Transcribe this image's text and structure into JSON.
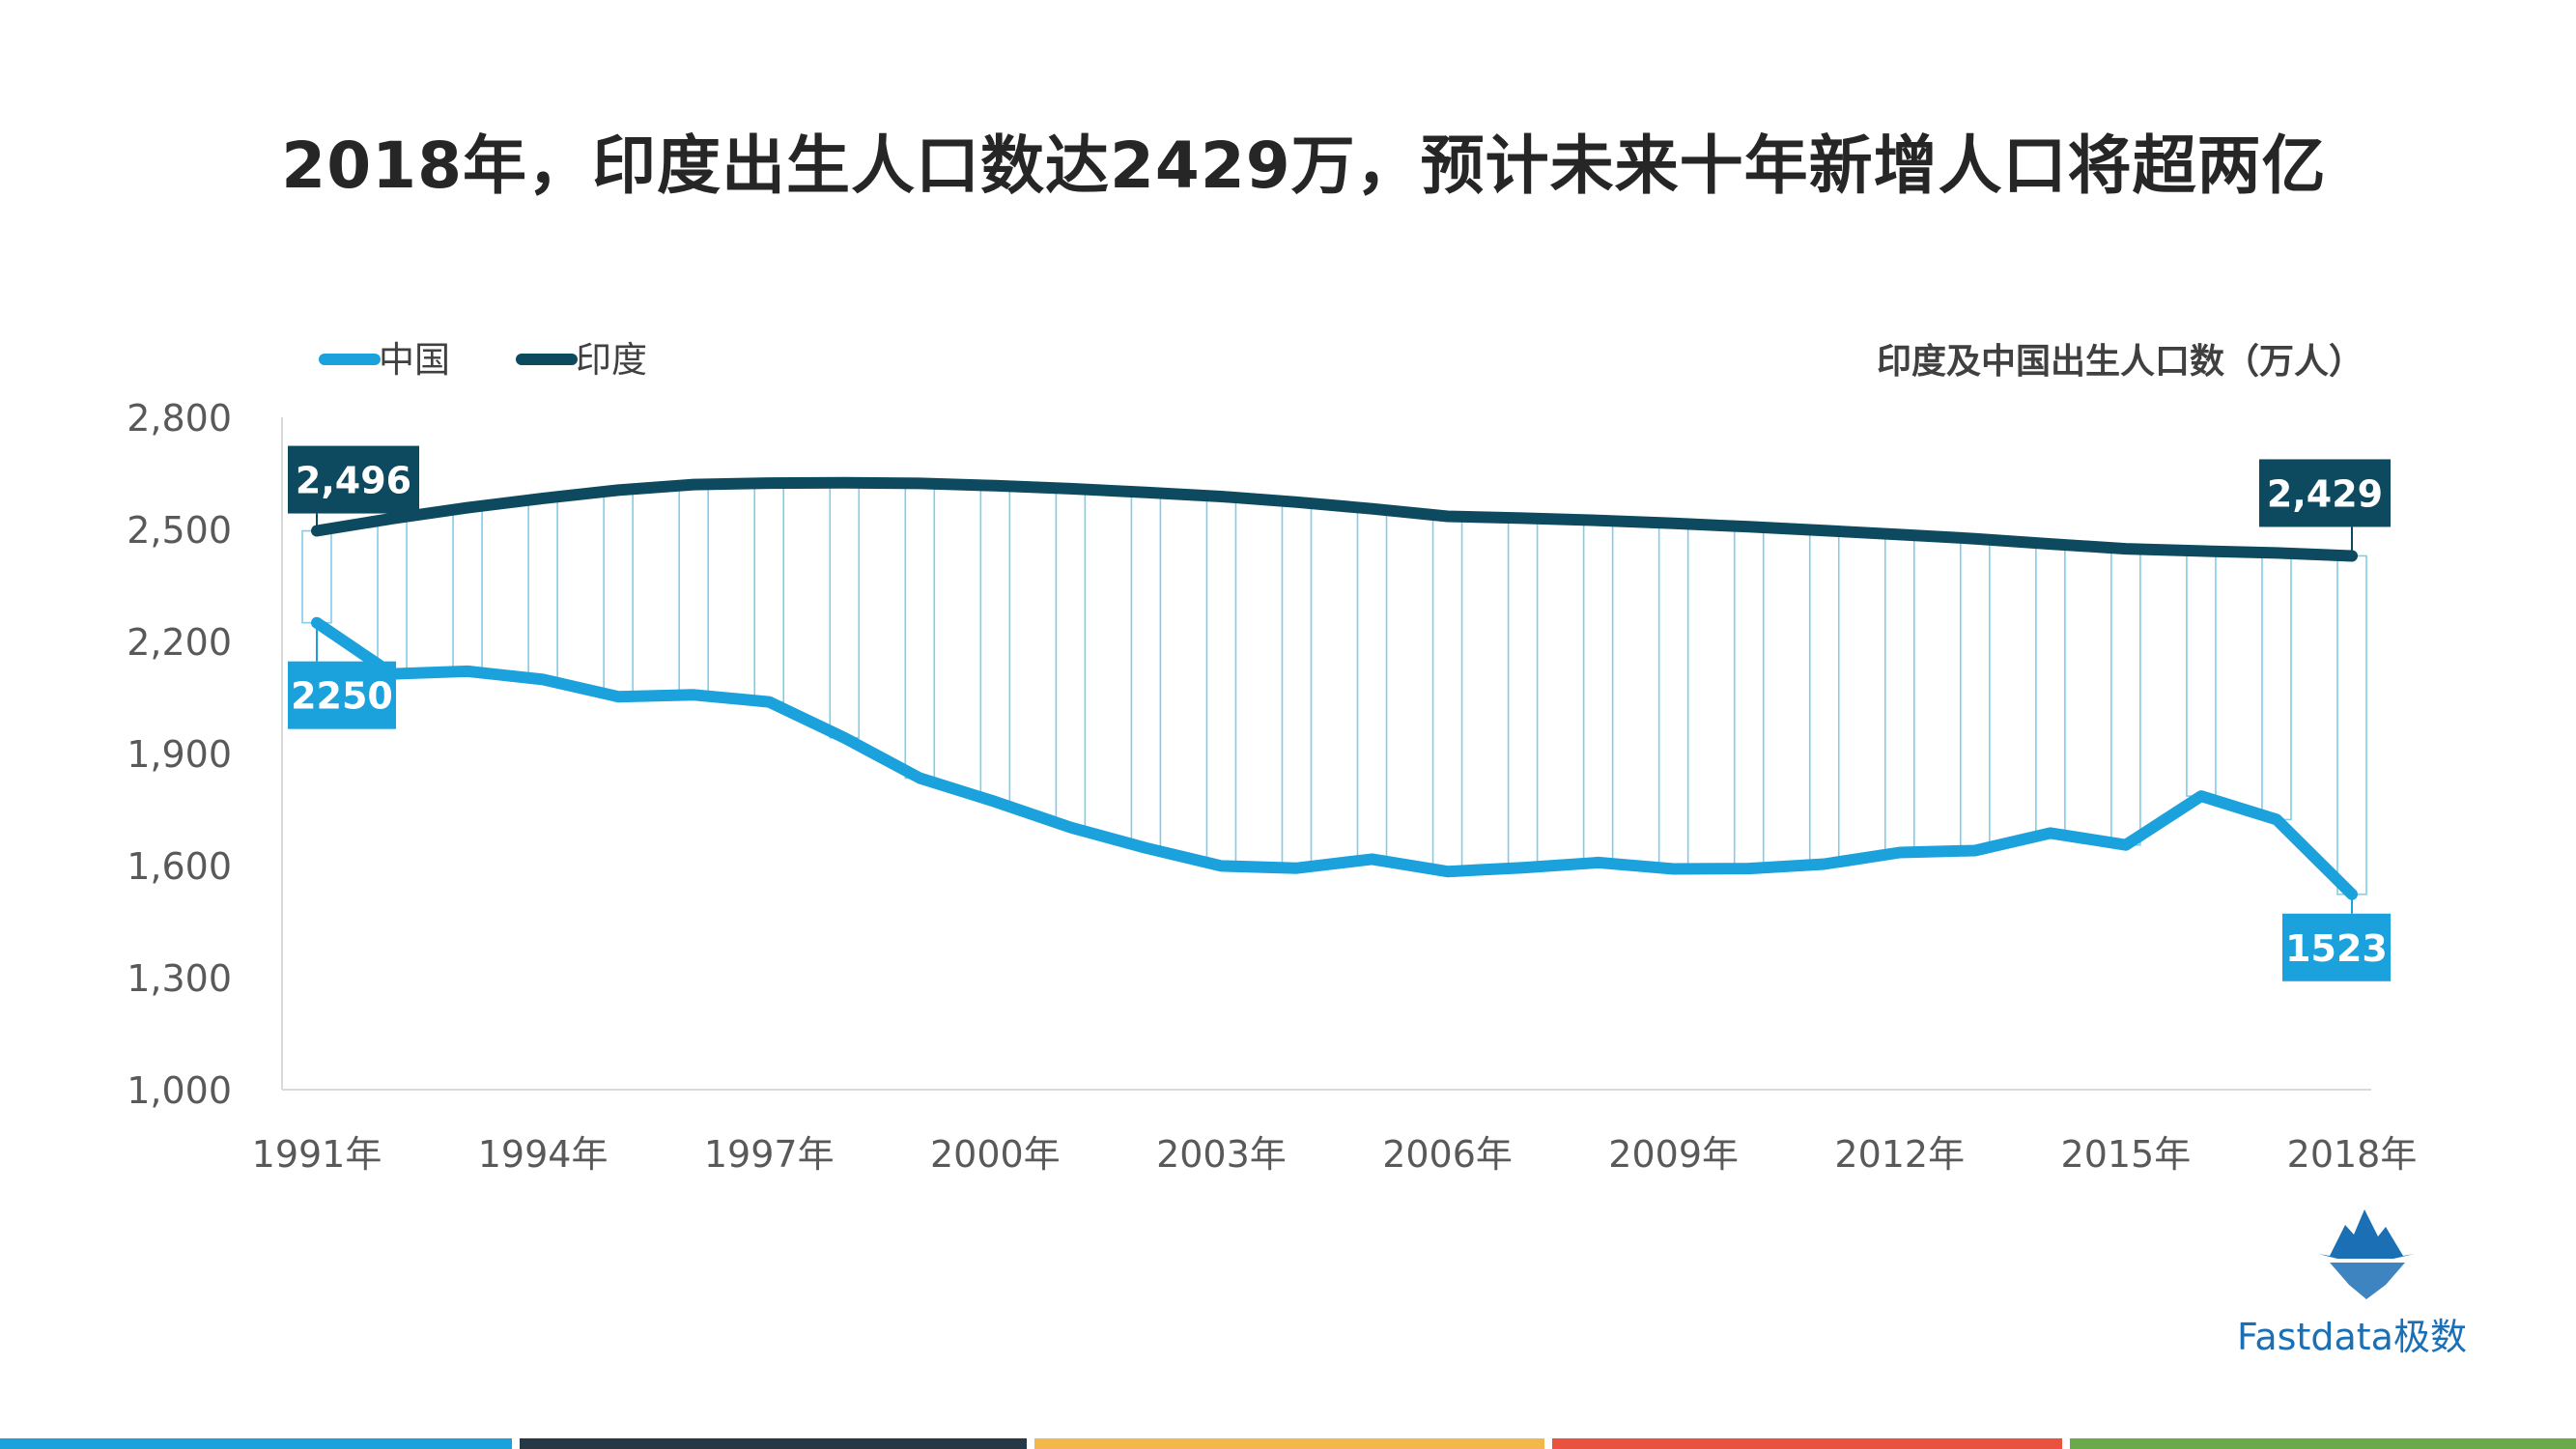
{
  "title": "2018年，印度出生人口数达2429万，预计未来十年新增人口将超两亿",
  "brand": {
    "name": "Fastdata极数"
  },
  "colors": {
    "china": "#1ba1dc",
    "india": "#0d4a5f",
    "drop_line": "#7fcdea",
    "axis": "#d9d9d9",
    "bottom_bars": [
      "#1ba1dc",
      "#263746",
      "#f2b84b",
      "#e8523f",
      "#6aaa4a"
    ]
  },
  "chart_data": {
    "type": "line",
    "unit_label": "印度及中国出生人口数（万人）",
    "x": [
      "1991年",
      "1992年",
      "1993年",
      "1994年",
      "1995年",
      "1996年",
      "1997年",
      "1998年",
      "1999年",
      "2000年",
      "2001年",
      "2002年",
      "2003年",
      "2004年",
      "2005年",
      "2006年",
      "2007年",
      "2008年",
      "2009年",
      "2010年",
      "2011年",
      "2012年",
      "2013年",
      "2014年",
      "2015年",
      "2016年",
      "2017年",
      "2018年"
    ],
    "x_tick_labels": [
      "1991年",
      "1994年",
      "1997年",
      "2000年",
      "2003年",
      "2006年",
      "2009年",
      "2012年",
      "2015年",
      "2018年"
    ],
    "ylim": [
      1000,
      2800
    ],
    "y_ticks": [
      1000,
      1300,
      1600,
      1900,
      2200,
      2500,
      2800
    ],
    "y_tick_labels": [
      "1,000",
      "1,300",
      "1,600",
      "1,900",
      "2,200",
      "2,500",
      "2,800"
    ],
    "grid": false,
    "legend_position": "top-left",
    "drop_lines": true,
    "series": [
      {
        "name": "中国",
        "values": [
          2250,
          2113,
          2120,
          2098,
          2052,
          2057,
          2038,
          1942,
          1834,
          1771,
          1702,
          1647,
          1599,
          1593,
          1617,
          1584,
          1594,
          1608,
          1591,
          1592,
          1604,
          1635,
          1640,
          1687,
          1655,
          1786,
          1723,
          1523
        ]
      },
      {
        "name": "印度",
        "values": [
          2496,
          2529,
          2558,
          2583,
          2605,
          2620,
          2624,
          2625,
          2623,
          2617,
          2609,
          2599,
          2588,
          2573,
          2555,
          2535,
          2530,
          2524,
          2516,
          2507,
          2497,
          2486,
          2475,
          2461,
          2448,
          2442,
          2437,
          2429
        ]
      }
    ],
    "annotations": [
      {
        "series": "印度",
        "x": "1991年",
        "label": "2,496"
      },
      {
        "series": "中国",
        "x": "1991年",
        "label": "2250"
      },
      {
        "series": "印度",
        "x": "2018年",
        "label": "2,429"
      },
      {
        "series": "中国",
        "x": "2018年",
        "label": "1523"
      }
    ]
  }
}
